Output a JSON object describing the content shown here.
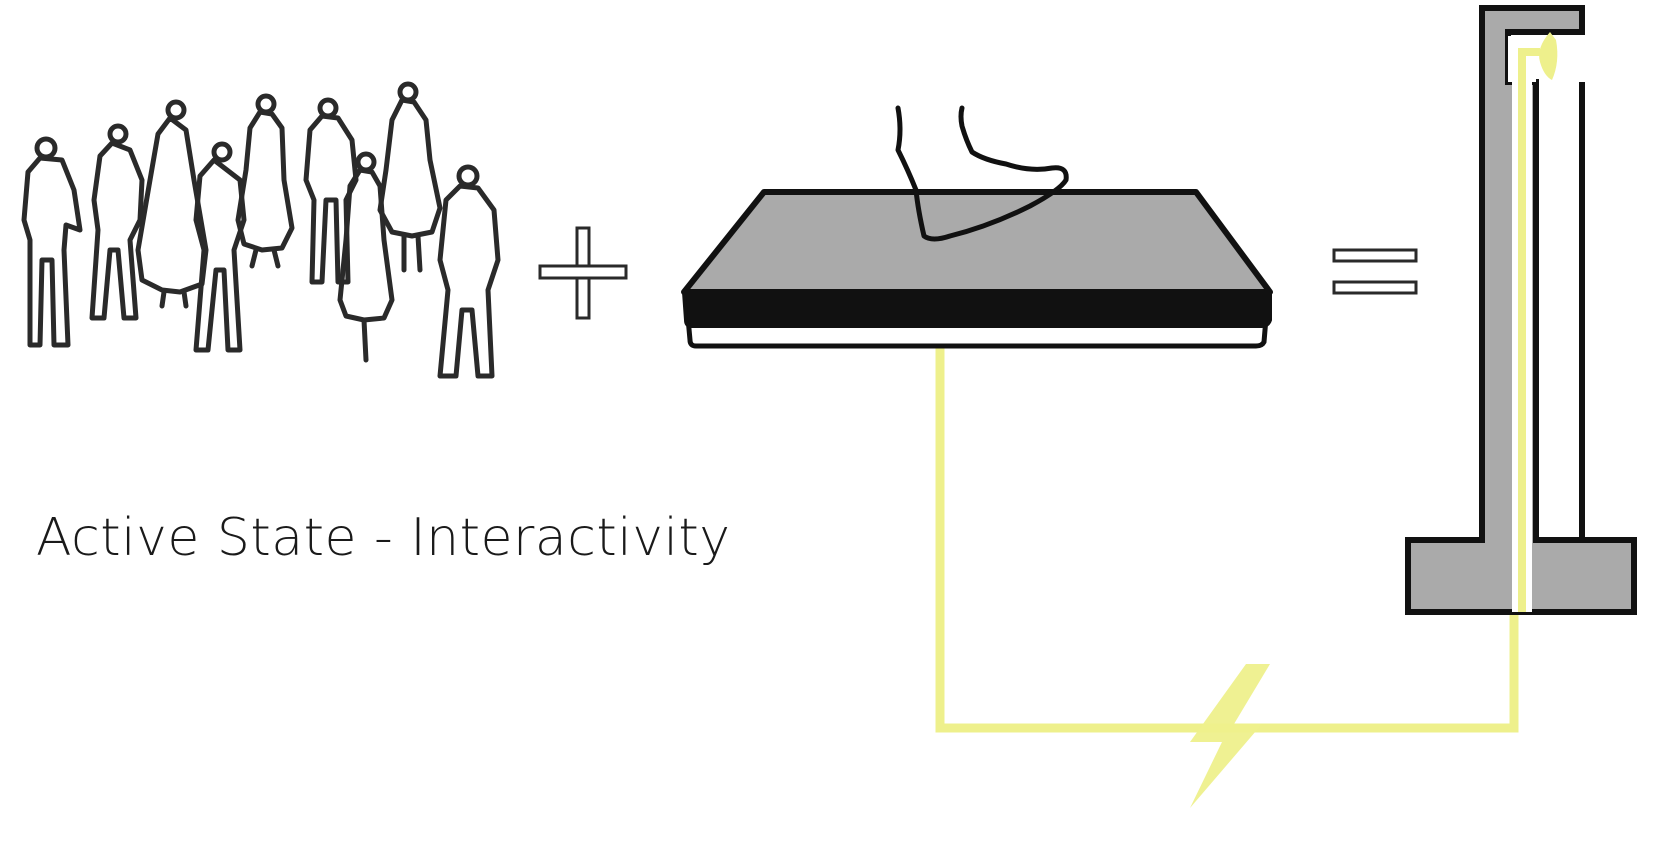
{
  "caption": "Active State - Interactivity",
  "colors": {
    "line": "#1a1a1a",
    "fill_gray": "#aaaaaa",
    "energy": "#eef08c",
    "background": "#ffffff"
  },
  "icons": [
    "people-crowd-icon",
    "plus-sign-icon",
    "footstep-icon",
    "pressure-plate-icon",
    "equals-sign-icon",
    "lamp-post-icon",
    "lightning-bolt-icon"
  ]
}
